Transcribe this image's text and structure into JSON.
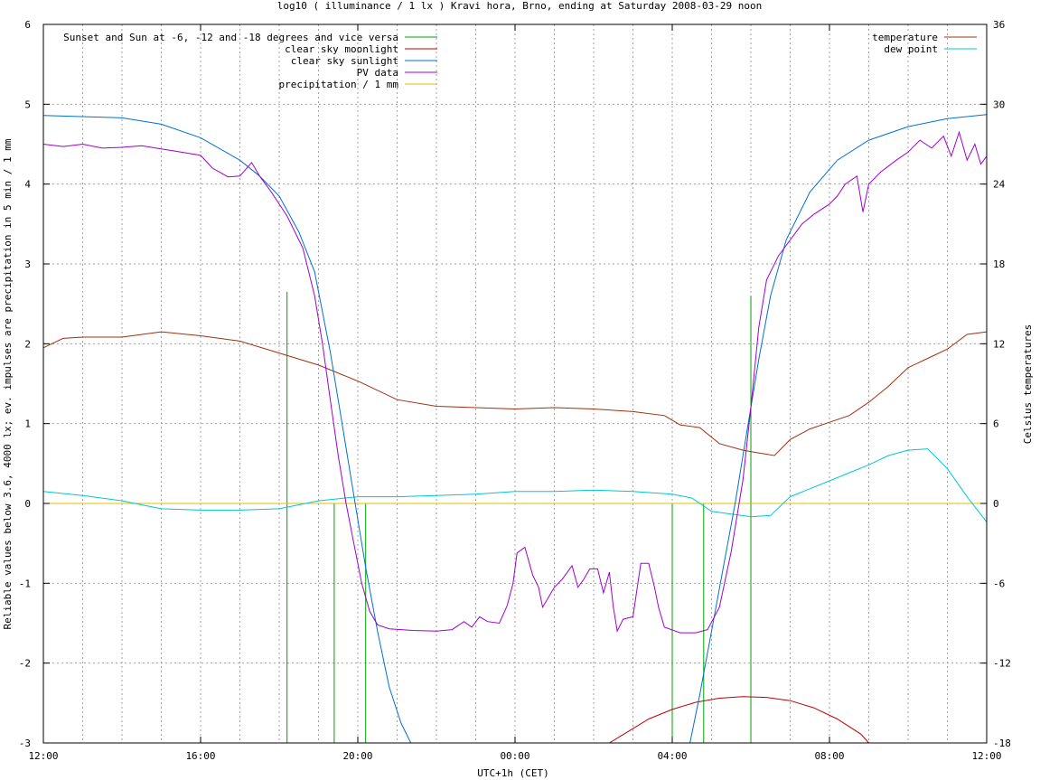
{
  "chart_data": {
    "type": "line",
    "title": "log10 ( illuminance / 1 lx ) Kravi hora, Brno, ending at Saturday 2008-03-29 noon",
    "xlabel": "UTC+1h (CET)",
    "ylabel": "Reliable values below 3.6, 4000 lx; ev. impulses are precipitation in 5 min / 1 mm",
    "y2label": "Celsius temperatures",
    "xlim": [
      0,
      24
    ],
    "ylim": [
      -3,
      6
    ],
    "y2lim": [
      -18,
      36
    ],
    "x_ticks": [
      {
        "x": 0,
        "label": "12:00"
      },
      {
        "x": 4,
        "label": "16:00"
      },
      {
        "x": 8,
        "label": "20:00"
      },
      {
        "x": 12,
        "label": "00:00"
      },
      {
        "x": 16,
        "label": "04:00"
      },
      {
        "x": 20,
        "label": "08:00"
      },
      {
        "x": 24,
        "label": "12:00"
      }
    ],
    "y_ticks": [
      "-3",
      "-2",
      "-1",
      "0",
      "1",
      "2",
      "3",
      "4",
      "5",
      "6"
    ],
    "y2_ticks": [
      "-18",
      "-12",
      "-6",
      "0",
      "6",
      "12",
      "18",
      "24",
      "30",
      "36"
    ],
    "grid": true,
    "legend_left": [
      {
        "name": "Sunset and Sun at -6, -12 and -18 degrees and vice versa",
        "color": "#00a000"
      },
      {
        "name": "clear sky moonlight",
        "color": "#c00000"
      },
      {
        "name": "clear sky sunlight",
        "color": "#0070d0"
      },
      {
        "name": "PV data",
        "color": "#a000d0"
      },
      {
        "name": "precipitation / 1 mm",
        "color": "#e0c000"
      }
    ],
    "legend_right": [
      {
        "name": "temperature",
        "color": "#a03010"
      },
      {
        "name": "dew point",
        "color": "#00c8d0"
      }
    ],
    "series": [
      {
        "name": "clear sky sunlight",
        "axis": "y",
        "color": "#0070d0",
        "points": [
          [
            0,
            4.86
          ],
          [
            2,
            4.83
          ],
          [
            3,
            4.75
          ],
          [
            4,
            4.58
          ],
          [
            5,
            4.3
          ],
          [
            5.5,
            4.1
          ],
          [
            6,
            3.85
          ],
          [
            6.5,
            3.4
          ],
          [
            6.9,
            2.9
          ],
          [
            7.3,
            1.9
          ],
          [
            7.6,
            1.0
          ],
          [
            7.9,
            0.1
          ],
          [
            8.2,
            -0.8
          ],
          [
            8.5,
            -1.6
          ],
          [
            8.8,
            -2.3
          ],
          [
            9.1,
            -2.75
          ],
          [
            9.35,
            -3.0
          ]
        ]
      },
      {
        "name": "clear sky sunlight (morning)",
        "axis": "y",
        "color": "#0070d0",
        "points": [
          [
            16.45,
            -3.0
          ],
          [
            16.7,
            -2.4
          ],
          [
            17.0,
            -1.6
          ],
          [
            17.3,
            -0.8
          ],
          [
            17.6,
            0.0
          ],
          [
            17.9,
            0.9
          ],
          [
            18.2,
            1.8
          ],
          [
            18.5,
            2.6
          ],
          [
            18.9,
            3.3
          ],
          [
            19.5,
            3.9
          ],
          [
            20.2,
            4.3
          ],
          [
            21.0,
            4.55
          ],
          [
            22.0,
            4.72
          ],
          [
            23.0,
            4.82
          ],
          [
            24.0,
            4.87
          ]
        ]
      },
      {
        "name": "clear sky moonlight",
        "axis": "y",
        "color": "#c00000",
        "points": [
          [
            14.4,
            -3.0
          ],
          [
            14.8,
            -2.88
          ],
          [
            15.4,
            -2.7
          ],
          [
            16.0,
            -2.58
          ],
          [
            16.6,
            -2.49
          ],
          [
            17.2,
            -2.44
          ],
          [
            17.8,
            -2.42
          ],
          [
            18.4,
            -2.43
          ],
          [
            19.0,
            -2.47
          ],
          [
            19.6,
            -2.56
          ],
          [
            20.2,
            -2.7
          ],
          [
            20.8,
            -2.89
          ],
          [
            21.0,
            -3.0
          ]
        ]
      },
      {
        "name": "PV data",
        "axis": "y",
        "color": "#a000d0",
        "points": [
          [
            0,
            4.5
          ],
          [
            0.5,
            4.47
          ],
          [
            1,
            4.5
          ],
          [
            1.5,
            4.45
          ],
          [
            2,
            4.46
          ],
          [
            2.5,
            4.48
          ],
          [
            3,
            4.44
          ],
          [
            3.5,
            4.4
          ],
          [
            4,
            4.36
          ],
          [
            4.3,
            4.2
          ],
          [
            4.7,
            4.09
          ],
          [
            5.0,
            4.1
          ],
          [
            5.3,
            4.27
          ],
          [
            5.5,
            4.1
          ],
          [
            5.8,
            3.9
          ],
          [
            6.2,
            3.6
          ],
          [
            6.6,
            3.2
          ],
          [
            6.9,
            2.6
          ],
          [
            7.1,
            2.0
          ],
          [
            7.3,
            1.3
          ],
          [
            7.5,
            0.6
          ],
          [
            7.7,
            0.0
          ],
          [
            7.9,
            -0.5
          ],
          [
            8.1,
            -1.0
          ],
          [
            8.3,
            -1.35
          ],
          [
            8.5,
            -1.52
          ],
          [
            8.8,
            -1.57
          ],
          [
            9.4,
            -1.59
          ],
          [
            10.0,
            -1.6
          ],
          [
            10.4,
            -1.58
          ],
          [
            10.7,
            -1.48
          ],
          [
            10.9,
            -1.55
          ],
          [
            11.1,
            -1.42
          ],
          [
            11.3,
            -1.48
          ],
          [
            11.6,
            -1.5
          ],
          [
            11.8,
            -1.28
          ],
          [
            11.95,
            -1.0
          ],
          [
            12.05,
            -0.62
          ],
          [
            12.25,
            -0.55
          ],
          [
            12.45,
            -0.9
          ],
          [
            12.6,
            -1.05
          ],
          [
            12.7,
            -1.3
          ],
          [
            12.8,
            -1.22
          ],
          [
            13.0,
            -1.05
          ],
          [
            13.2,
            -0.95
          ],
          [
            13.45,
            -0.78
          ],
          [
            13.6,
            -1.05
          ],
          [
            13.75,
            -0.95
          ],
          [
            13.9,
            -0.82
          ],
          [
            14.1,
            -0.82
          ],
          [
            14.25,
            -1.12
          ],
          [
            14.4,
            -0.86
          ],
          [
            14.5,
            -1.3
          ],
          [
            14.6,
            -1.6
          ],
          [
            14.75,
            -1.45
          ],
          [
            15.0,
            -1.42
          ],
          [
            15.2,
            -0.75
          ],
          [
            15.4,
            -0.75
          ],
          [
            15.55,
            -1.05
          ],
          [
            15.65,
            -1.3
          ],
          [
            15.8,
            -1.55
          ],
          [
            16.2,
            -1.62
          ],
          [
            16.6,
            -1.62
          ],
          [
            16.9,
            -1.58
          ],
          [
            17.2,
            -1.3
          ],
          [
            17.5,
            -0.6
          ],
          [
            17.8,
            0.3
          ],
          [
            18.0,
            1.2
          ],
          [
            18.2,
            2.2
          ],
          [
            18.4,
            2.8
          ],
          [
            18.7,
            3.1
          ],
          [
            19.0,
            3.3
          ],
          [
            19.3,
            3.5
          ],
          [
            19.6,
            3.62
          ],
          [
            20.0,
            3.75
          ],
          [
            20.2,
            3.85
          ],
          [
            20.4,
            4.0
          ],
          [
            20.7,
            4.1
          ],
          [
            20.85,
            3.65
          ],
          [
            21.0,
            4.0
          ],
          [
            21.3,
            4.15
          ],
          [
            21.7,
            4.3
          ],
          [
            22.0,
            4.4
          ],
          [
            22.3,
            4.55
          ],
          [
            22.6,
            4.45
          ],
          [
            22.9,
            4.6
          ],
          [
            23.1,
            4.35
          ],
          [
            23.3,
            4.65
          ],
          [
            23.5,
            4.3
          ],
          [
            23.7,
            4.5
          ],
          [
            23.85,
            4.25
          ],
          [
            24.0,
            4.35
          ]
        ]
      },
      {
        "name": "precipitation / 1 mm",
        "axis": "y",
        "color": "#e0c000",
        "points": [
          [
            0,
            0
          ],
          [
            24,
            0
          ]
        ]
      },
      {
        "name": "temperature",
        "axis": "y2",
        "color": "#a03010",
        "points": [
          [
            0,
            11.7
          ],
          [
            0.5,
            12.4
          ],
          [
            1,
            12.5
          ],
          [
            2,
            12.5
          ],
          [
            3,
            12.9
          ],
          [
            4,
            12.6
          ],
          [
            5,
            12.2
          ],
          [
            6,
            11.3
          ],
          [
            7,
            10.4
          ],
          [
            8,
            9.2
          ],
          [
            9,
            7.8
          ],
          [
            10,
            7.3
          ],
          [
            11,
            7.2
          ],
          [
            12,
            7.1
          ],
          [
            13,
            7.2
          ],
          [
            14,
            7.1
          ],
          [
            15,
            6.9
          ],
          [
            15.8,
            6.6
          ],
          [
            16.2,
            5.9
          ],
          [
            16.7,
            5.7
          ],
          [
            17.2,
            4.5
          ],
          [
            17.8,
            4.0
          ],
          [
            18.2,
            3.8
          ],
          [
            18.6,
            3.6
          ],
          [
            19.0,
            4.8
          ],
          [
            19.5,
            5.6
          ],
          [
            20.0,
            6.1
          ],
          [
            20.5,
            6.6
          ],
          [
            21.0,
            7.6
          ],
          [
            21.5,
            8.8
          ],
          [
            22.0,
            10.2
          ],
          [
            22.5,
            10.9
          ],
          [
            23.0,
            11.6
          ],
          [
            23.5,
            12.7
          ],
          [
            24.0,
            12.9
          ]
        ]
      },
      {
        "name": "dew point",
        "axis": "y2",
        "color": "#00c8d0",
        "points": [
          [
            0,
            0.9
          ],
          [
            1,
            0.6
          ],
          [
            2,
            0.2
          ],
          [
            3,
            -0.4
          ],
          [
            4,
            -0.5
          ],
          [
            5,
            -0.5
          ],
          [
            6,
            -0.4
          ],
          [
            7,
            0.2
          ],
          [
            8,
            0.5
          ],
          [
            9,
            0.5
          ],
          [
            10,
            0.6
          ],
          [
            11,
            0.7
          ],
          [
            12,
            0.9
          ],
          [
            13,
            0.9
          ],
          [
            14,
            1.0
          ],
          [
            15,
            0.9
          ],
          [
            16,
            0.7
          ],
          [
            16.5,
            0.4
          ],
          [
            17.0,
            -0.6
          ],
          [
            17.5,
            -0.8
          ],
          [
            18.0,
            -1.0
          ],
          [
            18.5,
            -0.9
          ],
          [
            19.0,
            0.5
          ],
          [
            19.5,
            1.1
          ],
          [
            20.0,
            1.7
          ],
          [
            20.5,
            2.3
          ],
          [
            21.0,
            2.9
          ],
          [
            21.5,
            3.6
          ],
          [
            22.0,
            4.0
          ],
          [
            22.5,
            4.1
          ],
          [
            23.0,
            2.6
          ],
          [
            23.5,
            0.5
          ],
          [
            24.0,
            -1.4
          ]
        ]
      }
    ],
    "sun_markers": [
      {
        "x": 6.2,
        "y_top": 2.65
      },
      {
        "x": 7.4,
        "y_top": 0.0
      },
      {
        "x": 8.2,
        "y_top": 0.0
      },
      {
        "x": 16.0,
        "y_top": 0.0
      },
      {
        "x": 16.8,
        "y_top": 0.0
      },
      {
        "x": 18.0,
        "y_top": 2.6
      }
    ]
  }
}
